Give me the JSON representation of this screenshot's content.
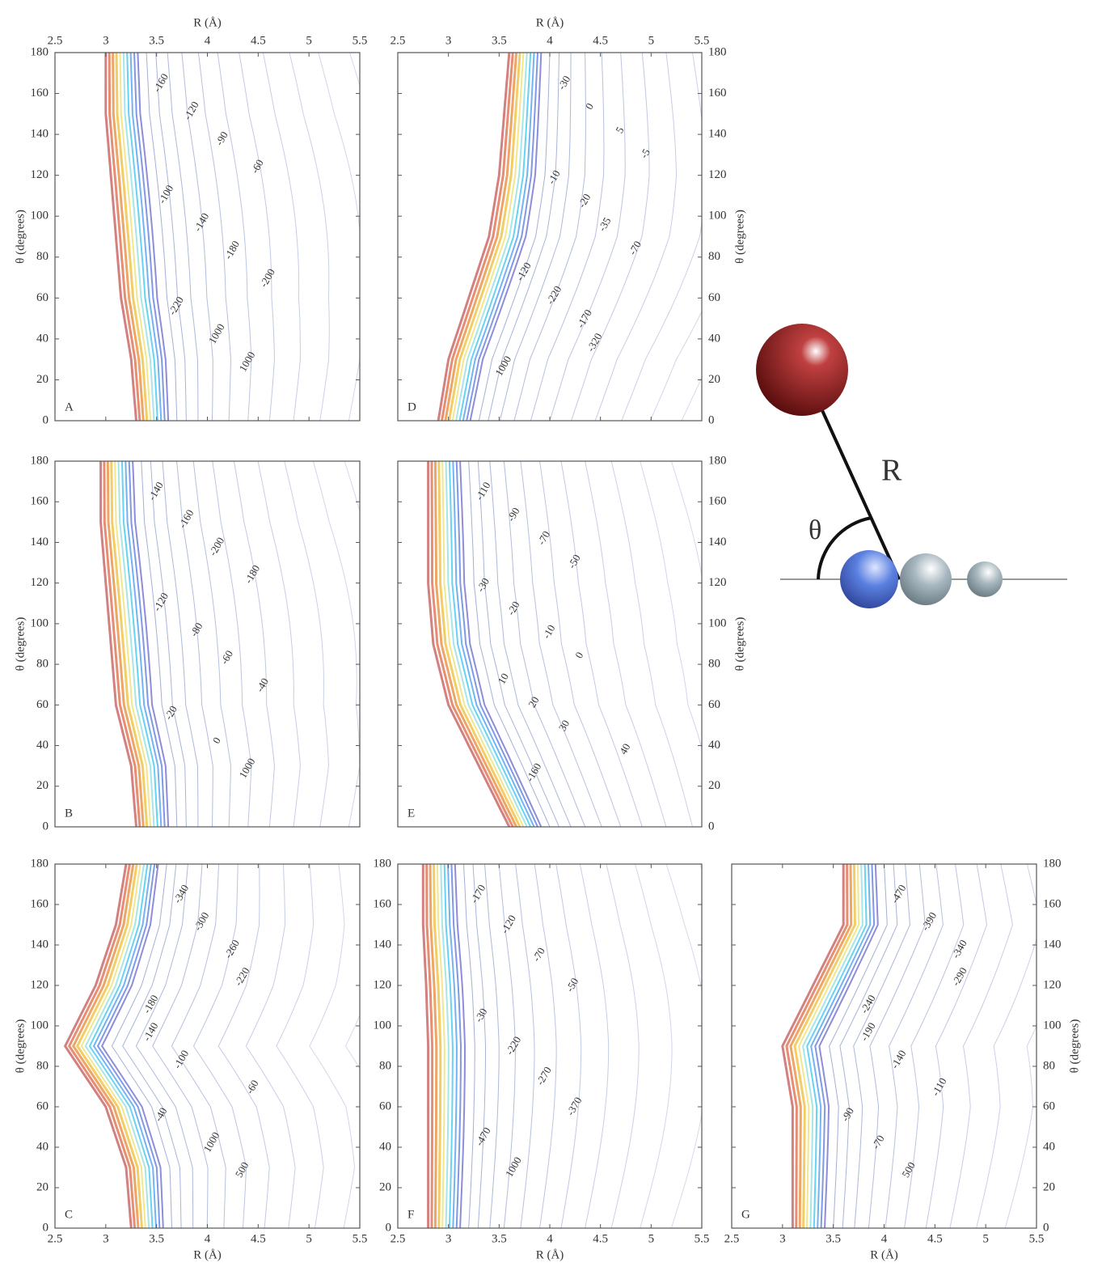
{
  "chart_data": [
    {
      "type": "contour",
      "panel": "A",
      "xlim": [
        2.5,
        5.5
      ],
      "ylim": [
        0,
        180
      ],
      "xticks": [
        2.5,
        3,
        3.5,
        4,
        4.5,
        5,
        5.5
      ],
      "xaxis_position": "top",
      "x_label": "R (Å)",
      "yticks": [
        0,
        20,
        40,
        60,
        80,
        100,
        120,
        140,
        160,
        180
      ],
      "yaxis_position": "left",
      "y_label": "θ (degrees)",
      "contour_labels": [
        "-160",
        "-120",
        "-90",
        "-60",
        "-100",
        "-140",
        "-180",
        "-200",
        "-220",
        "1000",
        "1000"
      ]
    },
    {
      "type": "contour",
      "panel": "D",
      "xlim": [
        2.5,
        5.5
      ],
      "ylim": [
        0,
        180
      ],
      "xticks": [
        2.5,
        3,
        3.5,
        4,
        4.5,
        5,
        5.5
      ],
      "xaxis_position": "top",
      "x_label": "R (Å)",
      "yticks": [
        0,
        20,
        40,
        60,
        80,
        100,
        120,
        140,
        160,
        180
      ],
      "yaxis_position": "right",
      "y_label": "θ (degrees)",
      "contour_labels": [
        "-30",
        "0",
        "5",
        "-5",
        "-10",
        "-20",
        "-35",
        "-70",
        "-120",
        "-220",
        "-170",
        "-320",
        "1000"
      ]
    },
    {
      "type": "contour",
      "panel": "B",
      "xlim": [
        2.5,
        5.5
      ],
      "ylim": [
        0,
        180
      ],
      "xaxis_position": "none",
      "yticks": [
        0,
        20,
        40,
        60,
        80,
        100,
        120,
        140,
        160,
        180
      ],
      "yaxis_position": "left",
      "y_label": "θ (degrees)",
      "contour_labels": [
        "-140",
        "-160",
        "-200",
        "-180",
        "-120",
        "-80",
        "-60",
        "-40",
        "-20",
        "0",
        "1000"
      ]
    },
    {
      "type": "contour",
      "panel": "E",
      "xlim": [
        2.5,
        5.5
      ],
      "ylim": [
        0,
        180
      ],
      "xaxis_position": "none",
      "yticks": [
        0,
        20,
        40,
        60,
        80,
        100,
        120,
        140,
        160,
        180
      ],
      "yaxis_position": "right",
      "y_label": "θ (degrees)",
      "contour_labels": [
        "-110",
        "-90",
        "-70",
        "-50",
        "-30",
        "-20",
        "-10",
        "0",
        "10",
        "20",
        "30",
        "40",
        "-160"
      ]
    },
    {
      "type": "contour",
      "panel": "C",
      "xlim": [
        2.5,
        5.5
      ],
      "ylim": [
        0,
        180
      ],
      "xticks": [
        2.5,
        3,
        3.5,
        4,
        4.5,
        5,
        5.5
      ],
      "xaxis_position": "bottom",
      "x_label": "R (Å)",
      "yticks": [
        0,
        20,
        40,
        60,
        80,
        100,
        120,
        140,
        160,
        180
      ],
      "yaxis_position": "left",
      "y_label": "θ (degrees)",
      "contour_labels": [
        "-340",
        "-300",
        "-260",
        "-220",
        "-180",
        "-140",
        "-100",
        "-60",
        "-40",
        "1000",
        "500"
      ]
    },
    {
      "type": "contour",
      "panel": "F",
      "xlim": [
        2.5,
        5.5
      ],
      "ylim": [
        0,
        180
      ],
      "xticks": [
        2.5,
        3,
        3.5,
        4,
        4.5,
        5,
        5.5
      ],
      "xaxis_position": "bottom",
      "x_label": "R (Å)",
      "yticks": [
        0,
        20,
        40,
        60,
        80,
        100,
        120,
        140,
        160,
        180
      ],
      "yaxis_position": "left",
      "contour_labels": [
        "-170",
        "-120",
        "-70",
        "-50",
        "-30",
        "-220",
        "-270",
        "-370",
        "-470",
        "1000"
      ]
    },
    {
      "type": "contour",
      "panel": "G",
      "xlim": [
        2.5,
        5.5
      ],
      "ylim": [
        0,
        180
      ],
      "xticks": [
        2.5,
        3,
        3.5,
        4,
        4.5,
        5,
        5.5
      ],
      "xaxis_position": "bottom",
      "x_label": "R (Å)",
      "yticks": [
        0,
        20,
        40,
        60,
        80,
        100,
        120,
        140,
        160,
        180
      ],
      "yaxis_position": "right",
      "y_label": "θ (degrees)",
      "contour_labels": [
        "-470",
        "-390",
        "-340",
        "-290",
        "-240",
        "-190",
        "-140",
        "-110",
        "-90",
        "-70",
        "500"
      ]
    }
  ],
  "diagram": {
    "distance_label": "R",
    "angle_label": "θ"
  }
}
